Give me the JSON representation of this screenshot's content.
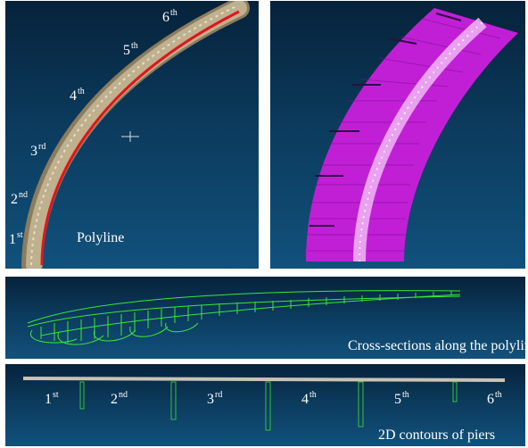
{
  "top_left": {
    "title": "Polyline",
    "ordinals": [
      {
        "num": "1",
        "suffix": "st"
      },
      {
        "num": "2",
        "suffix": "nd"
      },
      {
        "num": "3",
        "suffix": "rd"
      },
      {
        "num": "4",
        "suffix": "th"
      },
      {
        "num": "5",
        "suffix": "th"
      },
      {
        "num": "6",
        "suffix": "th"
      }
    ],
    "colors": {
      "polyline": "#e0151b",
      "deck": "#b8aa88",
      "background": "#0b3a5c"
    }
  },
  "top_right": {
    "colors": {
      "sections": "#c11fd6",
      "deck": "#f0b8f4"
    }
  },
  "middle": {
    "caption": "Cross-sections along the polyline",
    "colors": {
      "wireframe": "#39e83a"
    }
  },
  "bottom": {
    "caption": "2D contours of piers",
    "ordinals": [
      {
        "num": "1",
        "suffix": "st"
      },
      {
        "num": "2",
        "suffix": "nd"
      },
      {
        "num": "3",
        "suffix": "rd"
      },
      {
        "num": "4",
        "suffix": "th"
      },
      {
        "num": "5",
        "suffix": "th"
      },
      {
        "num": "6",
        "suffix": "th"
      }
    ],
    "colors": {
      "pier": "#33c436",
      "deck": "#c9c3b4"
    }
  }
}
